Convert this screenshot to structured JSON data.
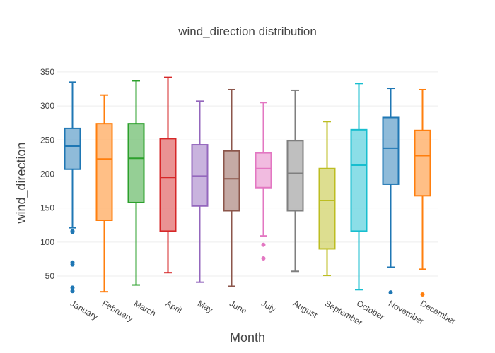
{
  "chart_data": {
    "type": "box",
    "title": "wind_direction distribution",
    "xlabel": "Month",
    "ylabel": "wind_direction",
    "ylim": [
      22,
      352
    ],
    "yticks": [
      50,
      100,
      150,
      200,
      250,
      300,
      350
    ],
    "grid": true,
    "legend": "none",
    "categories": [
      "January",
      "February",
      "March",
      "April",
      "May",
      "June",
      "July",
      "August",
      "September",
      "October",
      "November",
      "December"
    ],
    "colors": [
      "#1f77b4",
      "#ff7f0e",
      "#2ca02c",
      "#d62728",
      "#9467bd",
      "#8c564b",
      "#e377c2",
      "#7f7f7f",
      "#bcbd22",
      "#17becf",
      "#1f77b4",
      "#ff7f0e"
    ],
    "boxes": [
      {
        "month": "January",
        "min": 121,
        "q1": 207,
        "median": 241,
        "q3": 267,
        "max": 335,
        "outliers": [
          115,
          116,
          67,
          70,
          33,
          28
        ]
      },
      {
        "month": "February",
        "min": 27,
        "q1": 132,
        "median": 222,
        "q3": 274,
        "max": 316,
        "outliers": []
      },
      {
        "month": "March",
        "min": 37,
        "q1": 158,
        "median": 223,
        "q3": 274,
        "max": 337,
        "outliers": []
      },
      {
        "month": "April",
        "min": 55,
        "q1": 116,
        "median": 195,
        "q3": 252,
        "max": 342,
        "outliers": []
      },
      {
        "month": "May",
        "min": 41,
        "q1": 153,
        "median": 197,
        "q3": 243,
        "max": 307,
        "outliers": []
      },
      {
        "month": "June",
        "min": 35,
        "q1": 146,
        "median": 193,
        "q3": 234,
        "max": 324,
        "outliers": []
      },
      {
        "month": "July",
        "min": 109,
        "q1": 180,
        "median": 208,
        "q3": 231,
        "max": 305,
        "outliers": [
          96,
          76
        ]
      },
      {
        "month": "August",
        "min": 57,
        "q1": 146,
        "median": 201,
        "q3": 249,
        "max": 323,
        "outliers": []
      },
      {
        "month": "September",
        "min": 51,
        "q1": 90,
        "median": 161,
        "q3": 208,
        "max": 277,
        "outliers": []
      },
      {
        "month": "October",
        "min": 30,
        "q1": 116,
        "median": 213,
        "q3": 265,
        "max": 333,
        "outliers": []
      },
      {
        "month": "November",
        "min": 63,
        "q1": 185,
        "median": 238,
        "q3": 283,
        "max": 326,
        "outliers": [
          26
        ]
      },
      {
        "month": "December",
        "min": 60,
        "q1": 168,
        "median": 227,
        "q3": 264,
        "max": 324,
        "outliers": [
          23
        ]
      }
    ]
  }
}
